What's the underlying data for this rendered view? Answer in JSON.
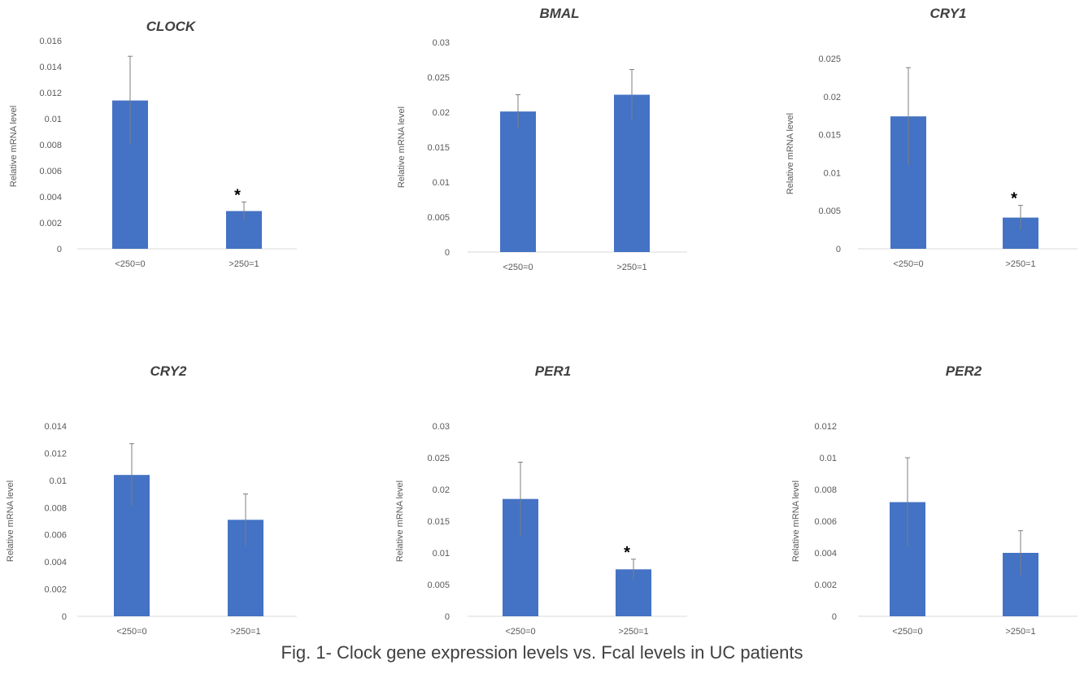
{
  "figure_caption": "Fig. 1- Clock gene expression levels vs. Fcal levels in UC patients",
  "colors": {
    "bar": "#4472c4",
    "axis": "#d9d9d9",
    "text": "#595959",
    "title": "#3f3f3f"
  },
  "chart_data": [
    {
      "type": "bar",
      "title": "CLOCK",
      "ylabel": "Relative mRNA level",
      "xlabel": "",
      "categories": [
        "<250=0",
        ">250=1"
      ],
      "values": [
        0.0114,
        0.0029
      ],
      "errors": [
        0.0034,
        0.0007
      ],
      "significant": [
        false,
        true
      ],
      "significance_marker": "*",
      "ylim": [
        0,
        0.016
      ],
      "yticks": [
        "0",
        "0.002",
        "0.004",
        "0.006",
        "0.008",
        "0.01",
        "0.012",
        "0.014",
        "0.016"
      ],
      "grid": false
    },
    {
      "type": "bar",
      "title": "BMAL",
      "ylabel": "Relative mRNA level",
      "xlabel": "",
      "categories": [
        "<250=0",
        ">250=1"
      ],
      "values": [
        0.0201,
        0.0225
      ],
      "errors": [
        0.0024,
        0.0036
      ],
      "significant": [
        false,
        false
      ],
      "significance_marker": "*",
      "ylim": [
        0,
        0.03
      ],
      "yticks": [
        "0",
        "0.005",
        "0.01",
        "0.015",
        "0.02",
        "0.025",
        "0.03"
      ],
      "grid": false
    },
    {
      "type": "bar",
      "title": "CRY1",
      "ylabel": "Relative mRNA level",
      "xlabel": "",
      "categories": [
        "<250=0",
        ">250=1"
      ],
      "values": [
        0.0174,
        0.0041
      ],
      "errors": [
        0.0064,
        0.0016
      ],
      "significant": [
        false,
        true
      ],
      "significance_marker": "*",
      "ylim": [
        0,
        0.025
      ],
      "yticks": [
        "0",
        "0.005",
        "0.01",
        "0.015",
        "0.02",
        "0.025"
      ],
      "grid": false
    },
    {
      "type": "bar",
      "title": "CRY2",
      "ylabel": "Relative mRNA level",
      "xlabel": "",
      "categories": [
        "<250=0",
        ">250=1"
      ],
      "values": [
        0.0104,
        0.0071
      ],
      "errors": [
        0.0023,
        0.0019
      ],
      "significant": [
        false,
        false
      ],
      "significance_marker": "*",
      "ylim": [
        0,
        0.014
      ],
      "yticks": [
        "0",
        "0.002",
        "0.004",
        "0.006",
        "0.008",
        "0.01",
        "0.012",
        "0.014"
      ],
      "grid": false
    },
    {
      "type": "bar",
      "title": "PER1",
      "ylabel": "Relative mRNA level",
      "xlabel": "",
      "categories": [
        "<250=0",
        ">250=1"
      ],
      "values": [
        0.0185,
        0.0074
      ],
      "errors": [
        0.0058,
        0.0016
      ],
      "significant": [
        false,
        true
      ],
      "significance_marker": "*",
      "ylim": [
        0,
        0.03
      ],
      "yticks": [
        "0",
        "0.005",
        "0.01",
        "0.015",
        "0.02",
        "0.025",
        "0.03"
      ],
      "grid": false
    },
    {
      "type": "bar",
      "title": "PER2",
      "ylabel": "Relative mRNA level",
      "xlabel": "",
      "categories": [
        "<250=0",
        ">250=1"
      ],
      "values": [
        0.0072,
        0.004
      ],
      "errors": [
        0.0028,
        0.0014
      ],
      "significant": [
        false,
        false
      ],
      "significance_marker": "*",
      "ylim": [
        0,
        0.012
      ],
      "yticks": [
        "0",
        "0.002",
        "0.004",
        "0.006",
        "0.008",
        "0.01",
        "0.012"
      ],
      "grid": false
    }
  ]
}
